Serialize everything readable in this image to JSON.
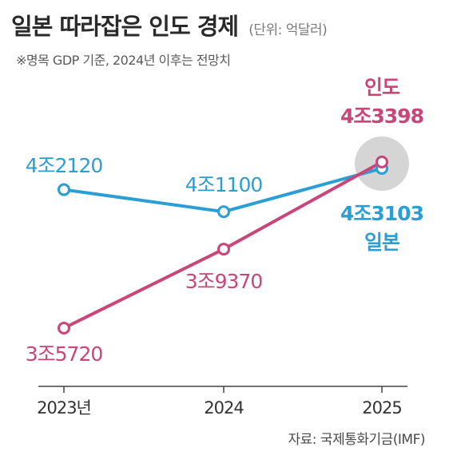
{
  "header": {
    "title": "일본 따라잡은 인도 경제",
    "unit": "(단위: 억달러)",
    "note": "※명목 GDP 기준, 2024년 이후는 전망치"
  },
  "source": "자료: 국제통화기금(IMF)",
  "colors": {
    "india": "#c9457a",
    "japan": "#2a9fd6",
    "axis": "#444444",
    "highlight": "#d5d5d5"
  },
  "chart_data": {
    "type": "line",
    "categories": [
      "2023년",
      "2024",
      "2025"
    ],
    "series": [
      {
        "name": "인도",
        "values": [
          35720,
          39370,
          43398
        ],
        "labels": [
          "3조5720",
          "3조9370",
          "4조3398"
        ]
      },
      {
        "name": "일본",
        "values": [
          42120,
          41100,
          43103
        ],
        "labels": [
          "4조2120",
          "4조1100",
          "4조3103"
        ]
      }
    ],
    "title": "일본 따라잡은 인도 경제",
    "xlabel": "",
    "ylabel": ""
  }
}
